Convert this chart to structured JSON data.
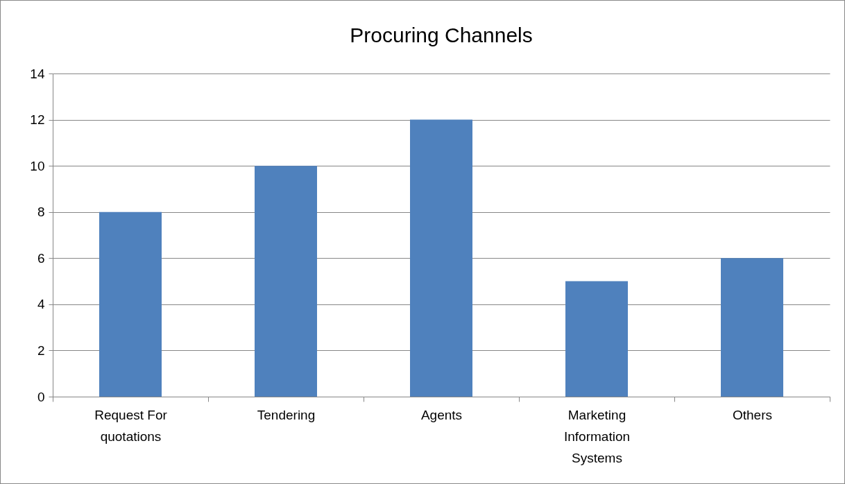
{
  "chart_data": {
    "type": "bar",
    "title": "Procuring Channels",
    "categories": [
      "Request For quotations",
      "Tendering",
      "Agents",
      "Marketing Information Systems",
      "Others"
    ],
    "values": [
      8,
      10,
      12,
      5,
      6
    ],
    "color": "#4f81bd",
    "ylim": [
      0,
      14
    ],
    "yticks": [
      0,
      2,
      4,
      6,
      8,
      10,
      12,
      14
    ],
    "grid": "y"
  }
}
